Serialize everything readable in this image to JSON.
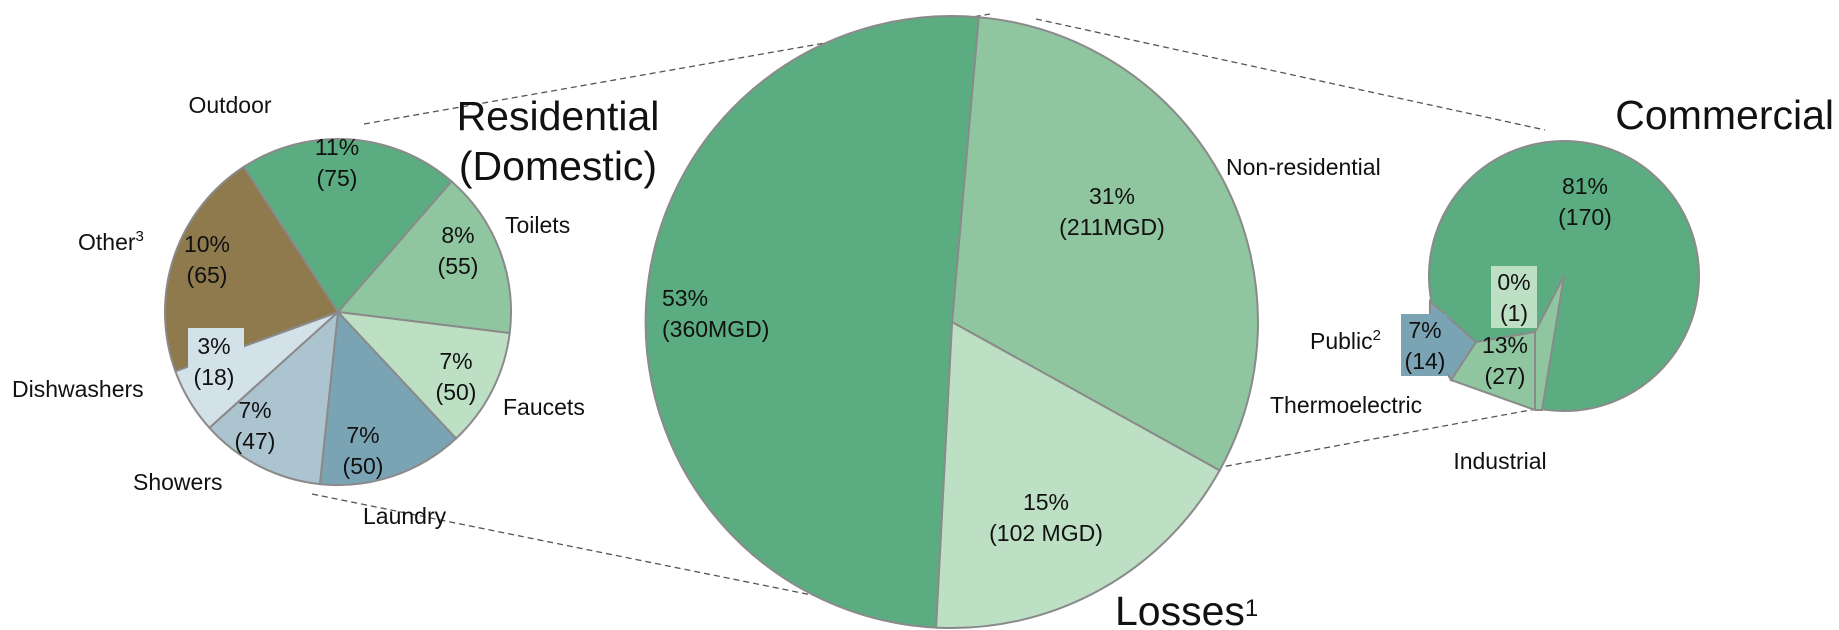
{
  "chart_data": [
    {
      "type": "pie",
      "title": "Residential\n(Domestic)",
      "slices": [
        {
          "label": "Outdoor",
          "percent": "11%",
          "value": "(75)",
          "color": "#5bad81"
        },
        {
          "label": "Toilets",
          "percent": "8%",
          "value": "(55)",
          "color": "#8fc69f"
        },
        {
          "label": "Faucets",
          "percent": "7%",
          "value": "(50)",
          "color": "#bddfc4"
        },
        {
          "label": "Laundry",
          "percent": "7%",
          "value": "(50)",
          "color": "#7aa3b4"
        },
        {
          "label": "Showers",
          "percent": "7%",
          "value": "(47)",
          "color": "#acc4cf"
        },
        {
          "label": "Dishwashers",
          "percent": "3%",
          "value": "(18)",
          "color": "#d3e1e8"
        },
        {
          "label": "Other",
          "label_sup": "3",
          "percent": "10%",
          "value": "(65)",
          "color": "#8e7a4d"
        }
      ]
    },
    {
      "type": "pie",
      "title": "",
      "slices": [
        {
          "label": "Non-residential",
          "percent": "31%",
          "value": "(211MGD)",
          "color": "#8fc69f"
        },
        {
          "label": "Losses",
          "label_sup": "1",
          "percent": "15%",
          "value": "(102 MGD)",
          "color": "#bddfc4"
        },
        {
          "label": "",
          "percent": "53%",
          "value": "(360MGD)",
          "color": "#5bad81"
        }
      ]
    },
    {
      "type": "pie",
      "title": "Commercial",
      "slices": [
        {
          "label": "Commercial",
          "percent": "81%",
          "value": "(170)",
          "color": "#5bad81"
        },
        {
          "label": "Industrial",
          "percent": "13%",
          "value": "(27)",
          "color": "#8fc69f"
        },
        {
          "label": "Thermoelectric",
          "percent": "0%",
          "value": "(1)",
          "color": "#bddfc4"
        },
        {
          "label": "Public",
          "label_sup": "2",
          "percent": "7%",
          "value": "(14)",
          "color": "#7aa3b4"
        }
      ]
    }
  ]
}
